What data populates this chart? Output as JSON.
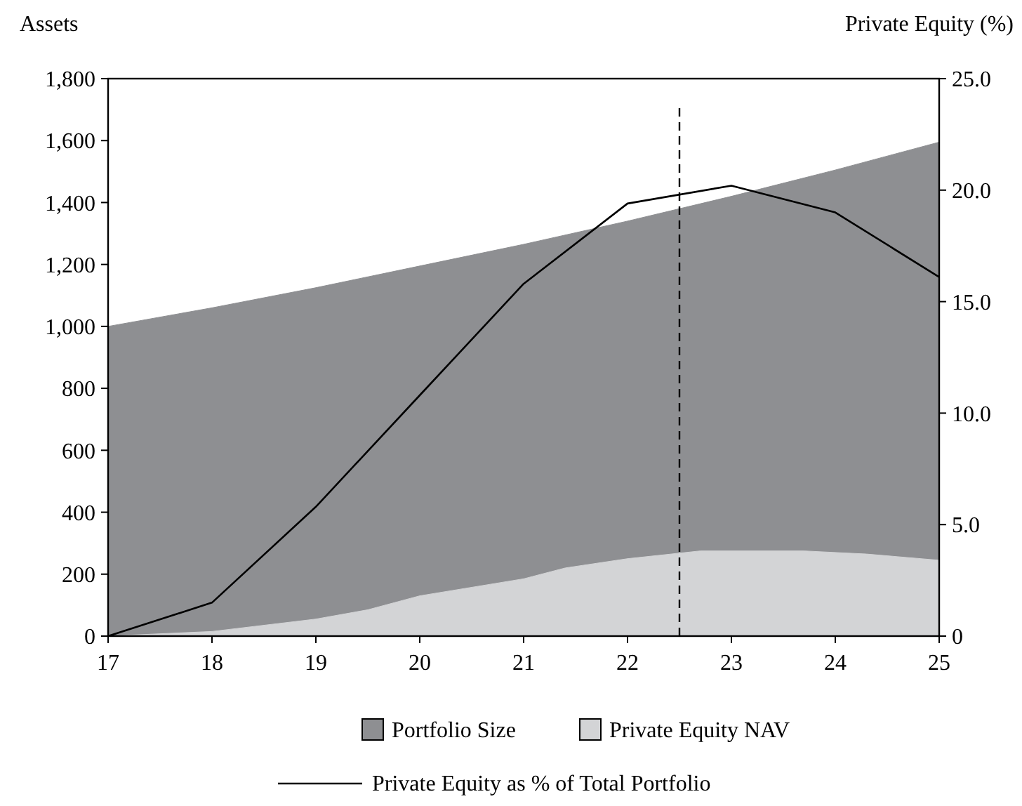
{
  "chart_data": {
    "type": "area",
    "ylabel": "Assets",
    "y2label": "Private Equity (%)",
    "xlim": [
      17,
      25
    ],
    "xticks": [
      17,
      18,
      19,
      20,
      21,
      22,
      23,
      24,
      25
    ],
    "ylim": [
      0,
      1800
    ],
    "yticks": [
      0,
      {
        "value": 200,
        "label": "200"
      },
      {
        "value": 400,
        "label": "400"
      },
      {
        "value": 600,
        "label": "600"
      },
      {
        "value": 800,
        "label": "800"
      },
      {
        "value": 1000,
        "label": "1,000"
      },
      {
        "value": 1200,
        "label": "1,200"
      },
      {
        "value": 1400,
        "label": "1,400"
      },
      {
        "value": 1600,
        "label": "1,600"
      },
      {
        "value": 1800,
        "label": "1,800"
      }
    ],
    "y2lim": [
      0,
      25
    ],
    "y2ticks": [
      0,
      {
        "value": 5,
        "label": "5.0"
      },
      {
        "value": 10,
        "label": "10.0"
      },
      {
        "value": 15,
        "label": "15.0"
      },
      {
        "value": 20,
        "label": "20.0"
      },
      {
        "value": 25,
        "label": "25.0"
      }
    ],
    "series": [
      {
        "name": "Portfolio Size",
        "color": "#8e8f92",
        "x": [
          17,
          18,
          19,
          20,
          21,
          22,
          23,
          24,
          25
        ],
        "values": [
          1000,
          1060,
          1125,
          1195,
          1265,
          1340,
          1420,
          1505,
          1595
        ]
      },
      {
        "name": "Private Equity NAV",
        "color": "#d3d4d6",
        "x": [
          17,
          18,
          19,
          19.5,
          20,
          21,
          21.4,
          22,
          22.7,
          23,
          23.7,
          24,
          24.3,
          25
        ],
        "values": [
          0,
          15,
          55,
          85,
          130,
          185,
          220,
          250,
          275,
          275,
          275,
          270,
          265,
          245
        ]
      },
      {
        "name": "Private Equity as % of Total Portfolio",
        "type": "line",
        "axis": "y2",
        "color": "#000000",
        "x": [
          17,
          18,
          19,
          20,
          21,
          22,
          23,
          24,
          25
        ],
        "values": [
          0,
          1.5,
          5.8,
          10.8,
          15.8,
          19.4,
          20.2,
          19.0,
          16.1
        ]
      }
    ],
    "ref_lines": [
      {
        "axis": "x",
        "value": 22.5,
        "line_style": "dashed",
        "color": "#000000"
      }
    ],
    "grid": false,
    "legend": "bottom"
  }
}
